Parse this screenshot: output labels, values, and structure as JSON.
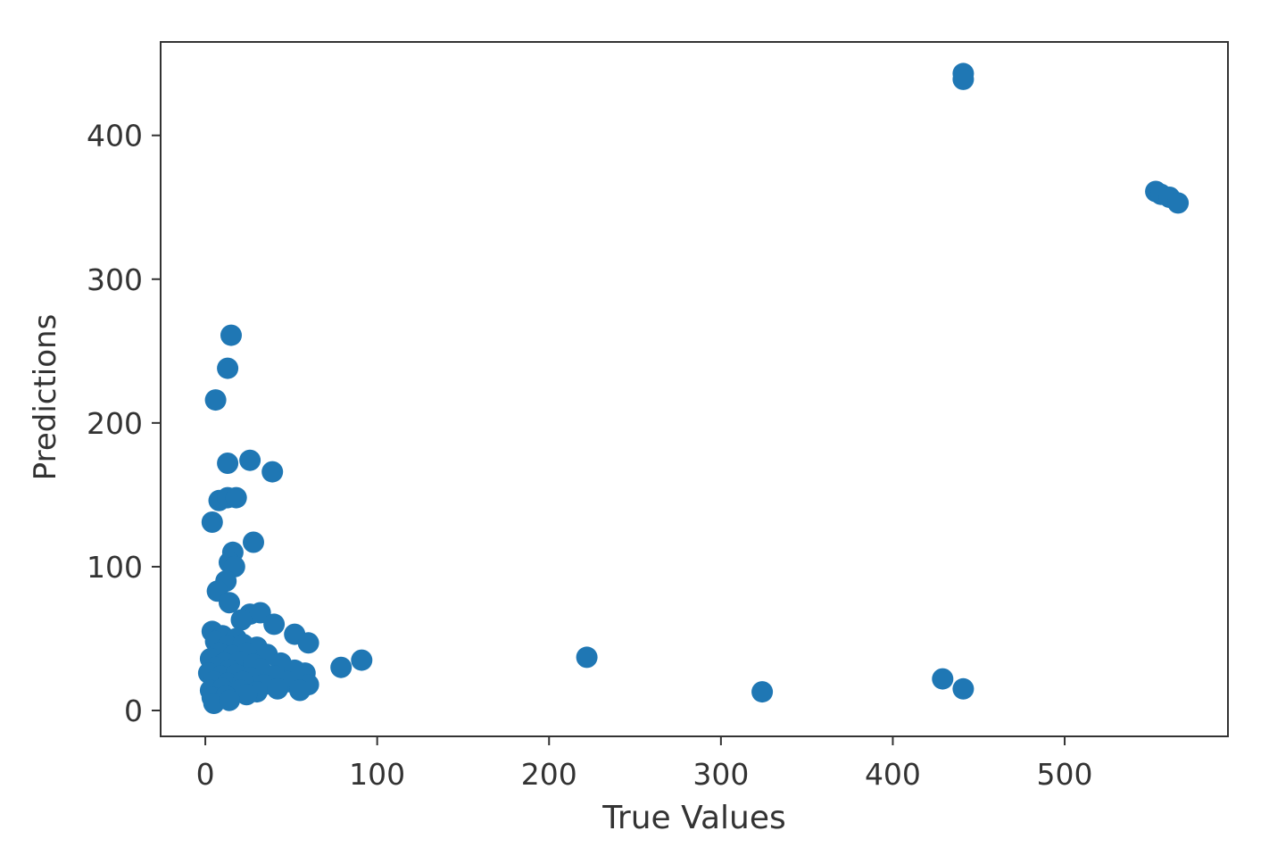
{
  "chart_data": {
    "type": "scatter",
    "title": "",
    "xlabel": "True Values",
    "ylabel": "Predictions",
    "xlim": [
      -26,
      595
    ],
    "ylim": [
      -18,
      465
    ],
    "x_ticks": [
      0,
      100,
      200,
      300,
      400,
      500
    ],
    "y_ticks": [
      0,
      100,
      200,
      300,
      400
    ],
    "grid": false,
    "legend": "none",
    "marker_color": "#1f77b4",
    "series": [
      {
        "points": [
          [
            441,
            443
          ],
          [
            441,
            439
          ],
          [
            553,
            361
          ],
          [
            556,
            359
          ],
          [
            561,
            357
          ],
          [
            566,
            353
          ],
          [
            15,
            261
          ],
          [
            13,
            238
          ],
          [
            6,
            216
          ],
          [
            13,
            172
          ],
          [
            26,
            174
          ],
          [
            39,
            166
          ],
          [
            8,
            146
          ],
          [
            13,
            148
          ],
          [
            18,
            148
          ],
          [
            4,
            131
          ],
          [
            28,
            117
          ],
          [
            16,
            110
          ],
          [
            14,
            103
          ],
          [
            17,
            100
          ],
          [
            12,
            90
          ],
          [
            7,
            83
          ],
          [
            14,
            75
          ],
          [
            26,
            67
          ],
          [
            32,
            68
          ],
          [
            40,
            60
          ],
          [
            21,
            63
          ],
          [
            52,
            53
          ],
          [
            60,
            47
          ],
          [
            4,
            55
          ],
          [
            10,
            52
          ],
          [
            18,
            50
          ],
          [
            6,
            48
          ],
          [
            13,
            45
          ],
          [
            22,
            46
          ],
          [
            30,
            44
          ],
          [
            8,
            40
          ],
          [
            16,
            38
          ],
          [
            24,
            40
          ],
          [
            36,
            39
          ],
          [
            3,
            36
          ],
          [
            11,
            33
          ],
          [
            20,
            34
          ],
          [
            28,
            32
          ],
          [
            44,
            33
          ],
          [
            6,
            30
          ],
          [
            14,
            28
          ],
          [
            32,
            29
          ],
          [
            52,
            28
          ],
          [
            2,
            26
          ],
          [
            9,
            24
          ],
          [
            18,
            25
          ],
          [
            26,
            23
          ],
          [
            40,
            24
          ],
          [
            58,
            26
          ],
          [
            5,
            20
          ],
          [
            13,
            19
          ],
          [
            22,
            20
          ],
          [
            34,
            18
          ],
          [
            48,
            20
          ],
          [
            60,
            18
          ],
          [
            3,
            14
          ],
          [
            10,
            15
          ],
          [
            20,
            14
          ],
          [
            30,
            13
          ],
          [
            42,
            15
          ],
          [
            55,
            14
          ],
          [
            4,
            9
          ],
          [
            12,
            10
          ],
          [
            24,
            11
          ],
          [
            5,
            5
          ],
          [
            14,
            7
          ],
          [
            79,
            30
          ],
          [
            91,
            35
          ],
          [
            222,
            37
          ],
          [
            324,
            13
          ],
          [
            429,
            22
          ],
          [
            441,
            15
          ]
        ]
      }
    ]
  }
}
